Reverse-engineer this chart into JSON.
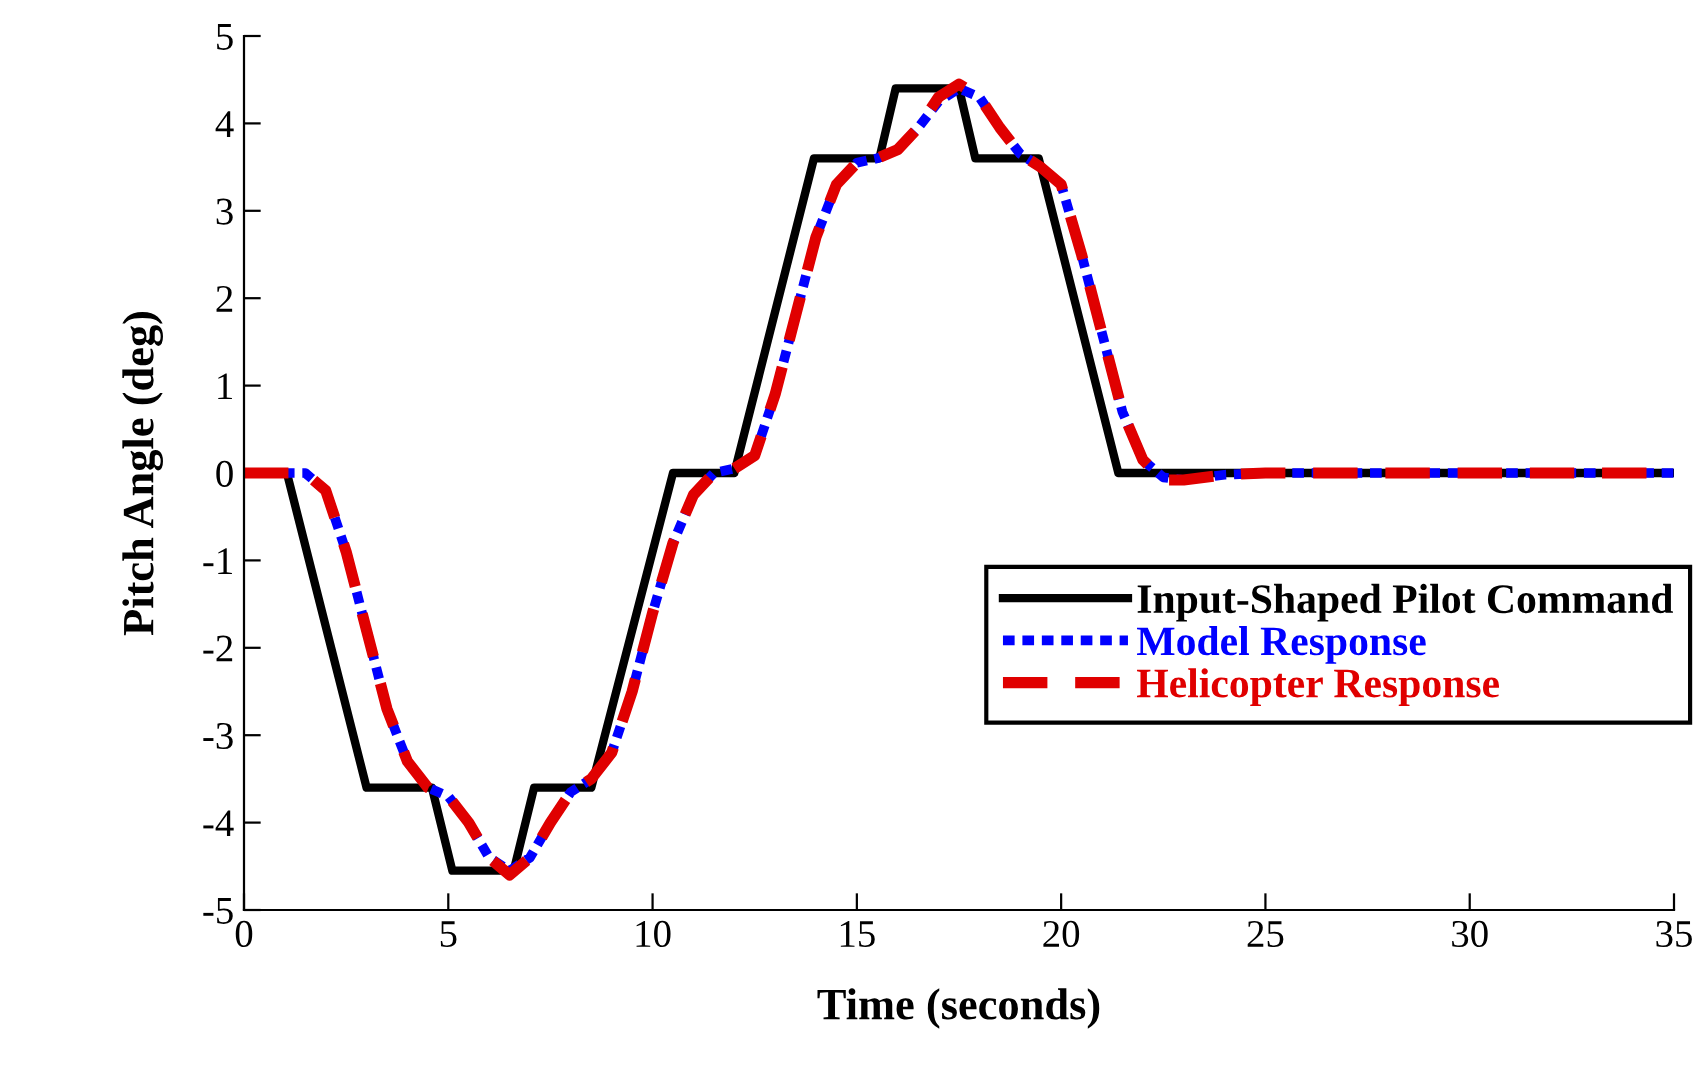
{
  "chart_data": {
    "type": "line",
    "xlabel": "Time (seconds)",
    "ylabel": "Pitch Angle (deg)",
    "xlim": [
      0,
      35
    ],
    "xticks": [
      0,
      5,
      10,
      15,
      20,
      25,
      30,
      35
    ],
    "ylim": [
      -5,
      5
    ],
    "yticks": [
      -5,
      -4,
      -3,
      -2,
      -1,
      0,
      1,
      2,
      3,
      4,
      5
    ],
    "grid": false,
    "legend": "bottom right",
    "series": [
      {
        "name": "Input-Shaped Pilot Command",
        "color": "#000000",
        "line_style": "solid",
        "x": [
          0,
          1.05,
          3.0,
          4.6,
          5.1,
          6.6,
          7.1,
          8.5,
          10.5,
          12.0,
          13.95,
          15.55,
          15.95,
          17.5,
          17.9,
          19.45,
          21.4,
          35
        ],
        "values": [
          0,
          0,
          -3.6,
          -3.6,
          -4.55,
          -4.55,
          -3.6,
          -3.6,
          0,
          0,
          3.6,
          3.6,
          4.4,
          4.4,
          3.6,
          3.6,
          0,
          0
        ]
      },
      {
        "name": "Model Response",
        "color": "#0000ff",
        "line_style": "dotted",
        "x": [
          0,
          1.5,
          2.0,
          2.5,
          3.0,
          3.5,
          4.0,
          4.5,
          5.0,
          5.5,
          6.0,
          6.5,
          7.0,
          7.5,
          8.0,
          8.5,
          9.0,
          9.5,
          10.0,
          10.5,
          11.0,
          11.5,
          12.0,
          12.5,
          13.0,
          13.5,
          14.0,
          14.5,
          15.0,
          15.5,
          16.0,
          16.5,
          17.0,
          17.5,
          18.0,
          18.5,
          19.0,
          19.5,
          20.0,
          20.5,
          21.0,
          21.5,
          22.0,
          22.5,
          23.0,
          24.0,
          25.0,
          35
        ],
        "values": [
          0,
          0,
          -0.2,
          -0.9,
          -1.8,
          -2.7,
          -3.3,
          -3.6,
          -3.7,
          -4.0,
          -4.4,
          -4.55,
          -4.4,
          -4.0,
          -3.65,
          -3.5,
          -3.2,
          -2.5,
          -1.6,
          -0.8,
          -0.25,
          0,
          0.05,
          0.2,
          0.9,
          1.8,
          2.7,
          3.3,
          3.55,
          3.6,
          3.7,
          3.95,
          4.25,
          4.4,
          4.3,
          3.95,
          3.65,
          3.5,
          3.3,
          2.5,
          1.6,
          0.7,
          0.15,
          -0.05,
          -0.08,
          -0.02,
          0,
          0
        ]
      },
      {
        "name": "Helicopter Response",
        "color": "#e00000",
        "line_style": "dashed",
        "x": [
          0,
          1.5,
          2.0,
          2.5,
          3.0,
          3.5,
          4.0,
          4.5,
          5.0,
          5.5,
          6.0,
          6.5,
          7.0,
          7.5,
          8.0,
          8.5,
          9.0,
          9.5,
          10.0,
          10.5,
          11.0,
          11.5,
          12.0,
          12.5,
          13.0,
          13.5,
          14.0,
          14.5,
          15.0,
          15.5,
          16.0,
          16.5,
          17.0,
          17.5,
          18.0,
          18.5,
          19.0,
          19.5,
          20.0,
          20.5,
          21.0,
          21.5,
          22.0,
          22.5,
          23.0,
          24.0,
          25.0,
          35
        ],
        "values": [
          0,
          0,
          -0.2,
          -0.9,
          -1.8,
          -2.7,
          -3.3,
          -3.6,
          -3.7,
          -4.0,
          -4.4,
          -4.6,
          -4.4,
          -4.0,
          -3.65,
          -3.5,
          -3.2,
          -2.5,
          -1.6,
          -0.8,
          -0.25,
          0,
          0.05,
          0.2,
          0.9,
          1.8,
          2.7,
          3.3,
          3.55,
          3.6,
          3.7,
          3.95,
          4.3,
          4.45,
          4.3,
          3.95,
          3.65,
          3.5,
          3.3,
          2.5,
          1.6,
          0.7,
          0.15,
          -0.08,
          -0.08,
          -0.02,
          0,
          0
        ]
      }
    ]
  }
}
